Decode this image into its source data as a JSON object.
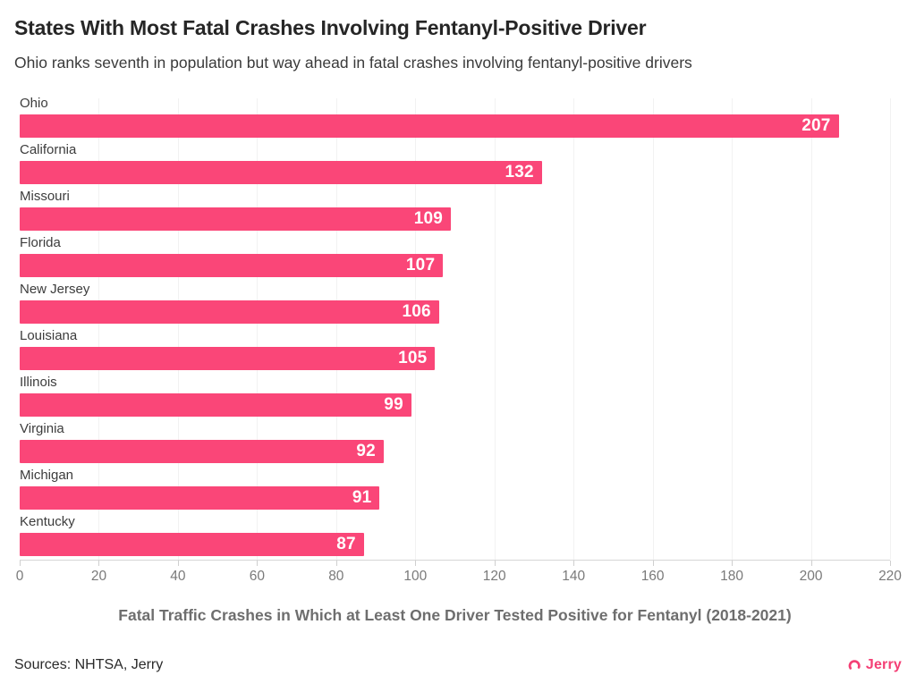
{
  "header": {
    "title": "States With Most Fatal Crashes Involving Fentanyl-Positive Driver",
    "subtitle": "Ohio ranks seventh in population but way ahead in fatal crashes involving fentanyl-positive drivers"
  },
  "chart_data": {
    "type": "bar",
    "orientation": "horizontal",
    "title": "States With Most Fatal Crashes Involving Fentanyl-Positive Driver",
    "subtitle": "Ohio ranks seventh in population but way ahead in fatal crashes involving fentanyl-positive drivers",
    "categories": [
      "Ohio",
      "California",
      "Missouri",
      "Florida",
      "New Jersey",
      "Louisiana",
      "Illinois",
      "Virginia",
      "Michigan",
      "Kentucky"
    ],
    "values": [
      207,
      132,
      109,
      107,
      106,
      105,
      99,
      92,
      91,
      87
    ],
    "xlabel": "Fatal Traffic Crashes in Which at Least One Driver Tested Positive for Fentanyl (2018-2021)",
    "ylabel": "",
    "xlim": [
      0,
      220
    ],
    "xticks": [
      0,
      20,
      40,
      60,
      80,
      100,
      120,
      140,
      160,
      180,
      200,
      220
    ],
    "grid": "vertical-faint",
    "legend": "none",
    "bar_color": "#FA4678",
    "value_label_color": "#FFFFFF"
  },
  "footer": {
    "sources": "Sources: NHTSA, Jerry",
    "brand": "Jerry",
    "brand_color": "#F43F75",
    "brand_icon": "jerry-arc-icon"
  }
}
